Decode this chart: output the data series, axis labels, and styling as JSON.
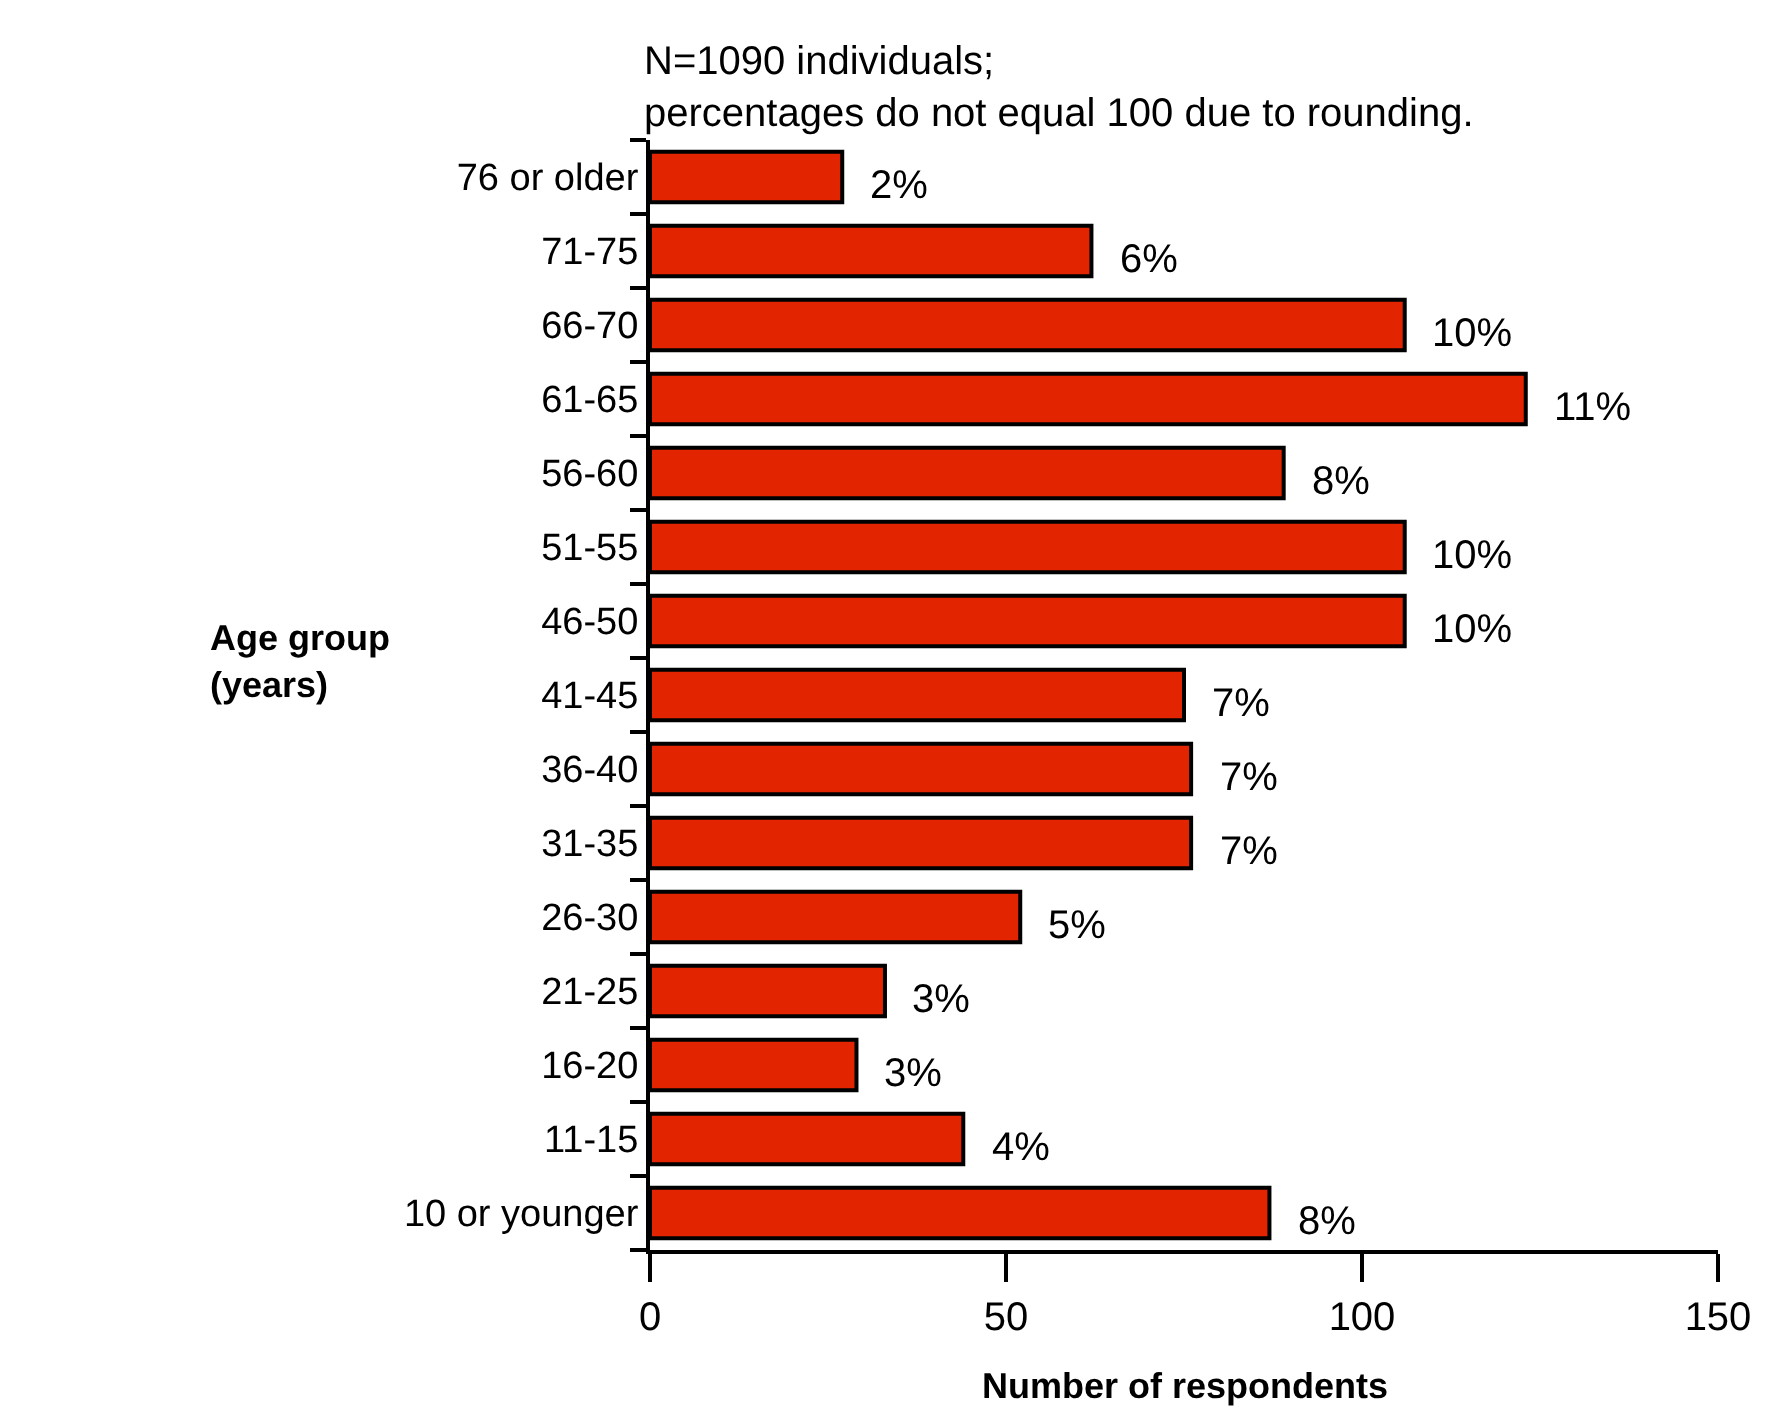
{
  "chart_data": {
    "type": "bar",
    "orientation": "horizontal",
    "categories": [
      "76 or older",
      "71-75",
      "66-70",
      "61-65",
      "56-60",
      "51-55",
      "46-50",
      "41-45",
      "36-40",
      "31-35",
      "26-30",
      "21-25",
      "16-20",
      "11-15",
      "10 or younger"
    ],
    "values": [
      27,
      62,
      106,
      123,
      89,
      106,
      106,
      75,
      76,
      76,
      52,
      33,
      29,
      44,
      87
    ],
    "color": "#e32400",
    "xlim": [
      0,
      150
    ],
    "xticks": [
      0,
      50,
      100,
      150
    ],
    "xlabel": "Number of respondents",
    "ylabel": "Age group\n(years)",
    "annotations": [
      "N=1090 individuals;\npercentages do not equal 100 due to rounding.",
      {
        "text": "2%",
        "x": 27,
        "y": "76 or older"
      },
      {
        "text": "6%",
        "x": 62,
        "y": "71-75"
      },
      {
        "text": "10%",
        "x": 106,
        "y": "66-70"
      },
      {
        "text": "11%",
        "x": 123,
        "y": "61-65"
      },
      {
        "text": "8%",
        "x": 89,
        "y": "56-60"
      },
      {
        "text": "10%",
        "x": 106,
        "y": "51-55"
      },
      {
        "text": "10%",
        "x": 106,
        "y": "46-50"
      },
      {
        "text": "7%",
        "x": 75,
        "y": "41-45"
      },
      {
        "text": "7%",
        "x": 76,
        "y": "36-40"
      },
      {
        "text": "7%",
        "x": 76,
        "y": "31-35"
      },
      {
        "text": "5%",
        "x": 52,
        "y": "26-30"
      },
      {
        "text": "3%",
        "x": 33,
        "y": "21-25"
      },
      {
        "text": "3%",
        "x": 29,
        "y": "16-20"
      },
      {
        "text": "4%",
        "x": 44,
        "y": "11-15"
      },
      {
        "text": "8%",
        "x": 87,
        "y": "10 or younger"
      }
    ],
    "grid": false,
    "legend": false
  }
}
